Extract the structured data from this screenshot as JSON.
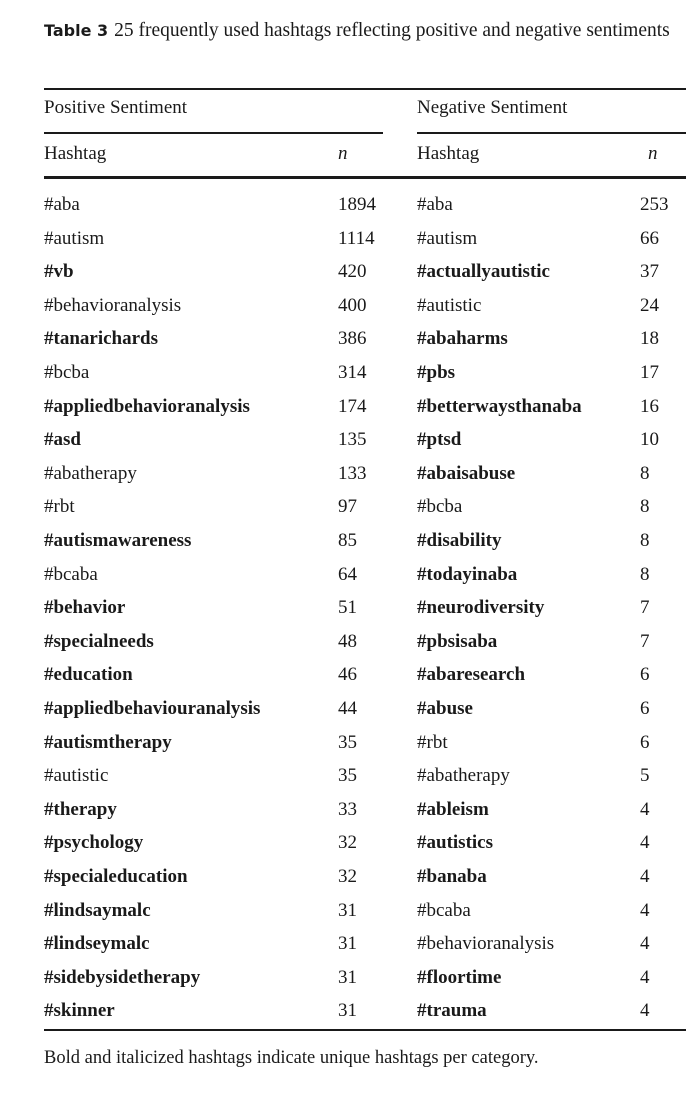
{
  "caption": {
    "label": "Table 3",
    "text": "25 frequently used hashtags reflecting positive and negative sentiments"
  },
  "groups": {
    "positive": "Positive Sentiment",
    "negative": "Negative Sentiment"
  },
  "columns": {
    "hashtag": "Hashtag",
    "n": "n"
  },
  "positive": [
    {
      "tag": "#aba",
      "n": "1894",
      "bold": false
    },
    {
      "tag": "#autism",
      "n": "1114",
      "bold": false
    },
    {
      "tag": "#vb",
      "n": "420",
      "bold": true
    },
    {
      "tag": "#behavioranalysis",
      "n": "400",
      "bold": false
    },
    {
      "tag": "#tanarichards",
      "n": "386",
      "bold": true
    },
    {
      "tag": "#bcba",
      "n": "314",
      "bold": false
    },
    {
      "tag": "#appliedbehavioranalysis",
      "n": "174",
      "bold": true
    },
    {
      "tag": "#asd",
      "n": "135",
      "bold": true
    },
    {
      "tag": "#abatherapy",
      "n": "133",
      "bold": false
    },
    {
      "tag": "#rbt",
      "n": "97",
      "bold": false
    },
    {
      "tag": "#autismawareness",
      "n": "85",
      "bold": true
    },
    {
      "tag": "#bcaba",
      "n": "64",
      "bold": false
    },
    {
      "tag": "#behavior",
      "n": "51",
      "bold": true
    },
    {
      "tag": "#specialneeds",
      "n": "48",
      "bold": true
    },
    {
      "tag": "#education",
      "n": "46",
      "bold": true
    },
    {
      "tag": "#appliedbehaviouranalysis",
      "n": "44",
      "bold": true
    },
    {
      "tag": "#autismtherapy",
      "n": "35",
      "bold": true
    },
    {
      "tag": "#autistic",
      "n": "35",
      "bold": false
    },
    {
      "tag": "#therapy",
      "n": "33",
      "bold": true
    },
    {
      "tag": "#psychology",
      "n": "32",
      "bold": true
    },
    {
      "tag": "#specialeducation",
      "n": "32",
      "bold": true
    },
    {
      "tag": "#lindsaymalc",
      "n": "31",
      "bold": true
    },
    {
      "tag": "#lindseymalc",
      "n": "31",
      "bold": true
    },
    {
      "tag": "#sidebysidetherapy",
      "n": "31",
      "bold": true
    },
    {
      "tag": "#skinner",
      "n": "31",
      "bold": true
    }
  ],
  "negative": [
    {
      "tag": "#aba",
      "n": "253",
      "bold": false
    },
    {
      "tag": "#autism",
      "n": "66",
      "bold": false
    },
    {
      "tag": "#actuallyautistic",
      "n": "37",
      "bold": true
    },
    {
      "tag": "#autistic",
      "n": "24",
      "bold": false
    },
    {
      "tag": "#abaharms",
      "n": "18",
      "bold": true
    },
    {
      "tag": "#pbs",
      "n": "17",
      "bold": true
    },
    {
      "tag": "#betterwaysthanaba",
      "n": "16",
      "bold": true
    },
    {
      "tag": "#ptsd",
      "n": "10",
      "bold": true
    },
    {
      "tag": "#abaisabuse",
      "n": "8",
      "bold": true
    },
    {
      "tag": "#bcba",
      "n": "8",
      "bold": false
    },
    {
      "tag": "#disability",
      "n": "8",
      "bold": true
    },
    {
      "tag": "#todayinaba",
      "n": "8",
      "bold": true
    },
    {
      "tag": "#neurodiversity",
      "n": "7",
      "bold": true
    },
    {
      "tag": "#pbsisaba",
      "n": "7",
      "bold": true
    },
    {
      "tag": "#abaresearch",
      "n": "6",
      "bold": true
    },
    {
      "tag": "#abuse",
      "n": "6",
      "bold": true
    },
    {
      "tag": "#rbt",
      "n": "6",
      "bold": false
    },
    {
      "tag": "#abatherapy",
      "n": "5",
      "bold": false
    },
    {
      "tag": "#ableism",
      "n": "4",
      "bold": true
    },
    {
      "tag": "#autistics",
      "n": "4",
      "bold": true
    },
    {
      "tag": "#banaba",
      "n": "4",
      "bold": true
    },
    {
      "tag": "#bcaba",
      "n": "4",
      "bold": false
    },
    {
      "tag": "#behavioranalysis",
      "n": "4",
      "bold": false
    },
    {
      "tag": "#floortime",
      "n": "4",
      "bold": true
    },
    {
      "tag": "#trauma",
      "n": "4",
      "bold": true
    }
  ],
  "footnote": "Bold and italicized hashtags indicate unique hashtags per category."
}
